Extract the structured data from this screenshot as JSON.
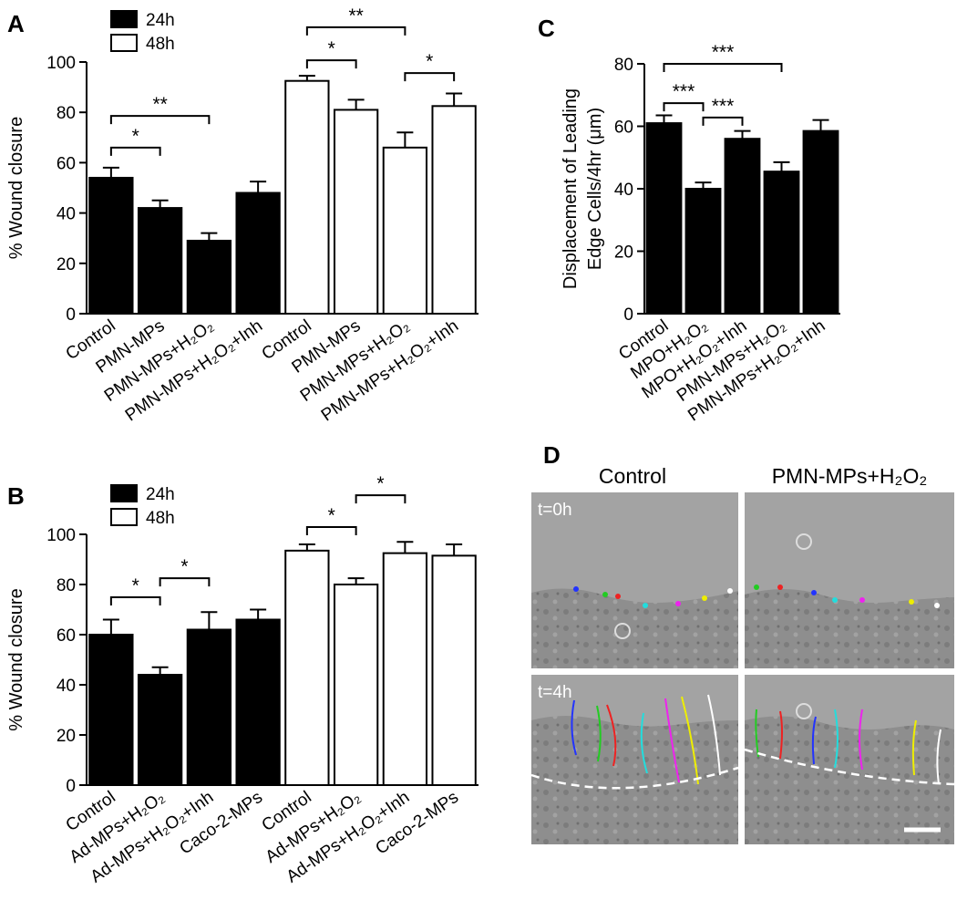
{
  "chart_data": [
    {
      "type": "bar",
      "panel_label": "A",
      "ylabel": [
        "% Wound closure"
      ],
      "categories": [
        "Control",
        "PMN-MPs",
        "PMN-MPs+H₂O₂",
        "PMN-MPs+H₂O₂+Inh",
        "Control",
        "PMN-MPs",
        "PMN-MPs+H₂O₂",
        "PMN-MPs+H₂O₂+Inh"
      ],
      "series": [
        {
          "name": "24h",
          "color": "#000000",
          "values": [
            54,
            42,
            29,
            48,
            null,
            null,
            null,
            null
          ],
          "errors": [
            4,
            3,
            3,
            4.5,
            null,
            null,
            null,
            null
          ]
        },
        {
          "name": "48h",
          "color": "#ffffff",
          "values": [
            null,
            null,
            null,
            null,
            92.5,
            81,
            66,
            82.5
          ],
          "errors": [
            null,
            null,
            null,
            null,
            2,
            4,
            6,
            5
          ]
        }
      ],
      "ylim": [
        0,
        100
      ],
      "yticks": [
        0,
        20,
        40,
        60,
        80,
        100
      ],
      "annotations": [
        {
          "text": "*",
          "from": 0,
          "to": 1,
          "y": 66
        },
        {
          "text": "**",
          "from": 0,
          "to": 2,
          "y": 78.6
        },
        {
          "text": "*",
          "from": 4,
          "to": 5,
          "y": 100.7
        },
        {
          "text": "**",
          "from": 4,
          "to": 6,
          "y": 113.8
        },
        {
          "text": "*",
          "from": 6,
          "to": 7,
          "y": 95.6
        }
      ]
    },
    {
      "type": "bar",
      "panel_label": "B",
      "ylabel": [
        "% Wound closure"
      ],
      "categories": [
        "Control",
        "Ad-MPs+H₂O₂",
        "Ad-MPs+H₂O₂+Inh",
        "Caco-2-MPs",
        "Control",
        "Ad-MPs+H₂O₂",
        "Ad-MPs+H₂O₂+Inh",
        "Caco-2-MPs"
      ],
      "series": [
        {
          "name": "24h",
          "color": "#000000",
          "values": [
            60,
            44,
            62,
            66,
            null,
            null,
            null,
            null
          ],
          "errors": [
            6,
            3,
            7,
            4,
            null,
            null,
            null,
            null
          ]
        },
        {
          "name": "48h",
          "color": "#ffffff",
          "values": [
            null,
            null,
            null,
            null,
            93.5,
            80,
            92.5,
            91.5
          ],
          "errors": [
            null,
            null,
            null,
            null,
            2.5,
            2.5,
            4.5,
            4.5
          ]
        }
      ],
      "ylim": [
        0,
        100
      ],
      "yticks": [
        0,
        20,
        40,
        60,
        80,
        100
      ],
      "annotations": [
        {
          "text": "*",
          "from": 0,
          "to": 1,
          "y": 74.9
        },
        {
          "text": "*",
          "from": 1,
          "to": 2,
          "y": 82.5
        },
        {
          "text": "*",
          "from": 4,
          "to": 5,
          "y": 102.9
        },
        {
          "text": "*",
          "from": 5,
          "to": 6,
          "y": 115.6
        }
      ]
    },
    {
      "type": "bar",
      "panel_label": "C",
      "ylabel": [
        "Displacement of Leading",
        "Edge Cells/4hr (μm)"
      ],
      "categories": [
        "Control",
        "MPO+H₂O₂",
        "MPO+H₂O₂+Inh",
        "PMN-MPs+H₂O₂",
        "PMN-MPs+H₂O₂+Inh"
      ],
      "series": [
        {
          "color": "#000000",
          "values": [
            61,
            40,
            56,
            45.5,
            58.5
          ],
          "errors": [
            2.5,
            2,
            2.5,
            3,
            3.5
          ]
        }
      ],
      "ylim": [
        0,
        80
      ],
      "yticks": [
        0,
        20,
        40,
        60,
        80
      ],
      "annotations": [
        {
          "text": "***",
          "from": 0,
          "to": 1,
          "y": 67.4
        },
        {
          "text": "***",
          "from": 1,
          "to": 2,
          "y": 62.8
        },
        {
          "text": "***",
          "from": 0,
          "to": 3,
          "y": 80
        }
      ]
    }
  ],
  "panel_d": {
    "label": "D",
    "columns": [
      "Control",
      "PMN-MPs+H₂O₂"
    ],
    "rows": [
      "t=0h",
      "t=4h"
    ]
  }
}
